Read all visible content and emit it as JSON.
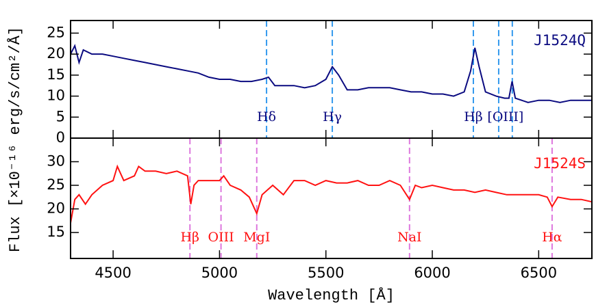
{
  "chart_data": [
    {
      "type": "line",
      "ylabel": "Flux [×10⁻¹⁶ erg/s/cm²/Å]",
      "series": [
        {
          "name": "J1524Q",
          "color": "#0a0a80",
          "x": [
            4300,
            4320,
            4340,
            4360,
            4400,
            4450,
            4500,
            4550,
            4600,
            4650,
            4700,
            4750,
            4800,
            4850,
            4900,
            4950,
            5000,
            5050,
            5100,
            5150,
            5200,
            5230,
            5260,
            5300,
            5350,
            5400,
            5450,
            5500,
            5530,
            5560,
            5600,
            5650,
            5700,
            5750,
            5800,
            5850,
            5900,
            5950,
            6000,
            6050,
            6100,
            6150,
            6180,
            6200,
            6220,
            6250,
            6300,
            6340,
            6360,
            6375,
            6390,
            6420,
            6450,
            6500,
            6550,
            6600,
            6650,
            6700,
            6750
          ],
          "values": [
            20,
            22,
            18,
            21,
            20,
            20,
            19.5,
            19,
            18.5,
            18,
            17.5,
            17,
            16.5,
            16,
            15.5,
            14.5,
            14,
            14,
            13.5,
            13.5,
            14,
            14.5,
            12.5,
            12.5,
            12.5,
            12,
            12.5,
            14,
            17,
            15,
            11.5,
            11.5,
            12,
            12,
            12,
            11.5,
            11,
            11,
            10.5,
            10.5,
            10,
            11,
            16,
            21.5,
            17,
            11,
            10,
            9.5,
            9.5,
            13.5,
            9.5,
            9,
            8.5,
            9,
            9,
            8.5,
            9,
            9,
            9
          ]
        }
      ],
      "ylim": [
        0,
        28
      ],
      "yticks": [
        0,
        5,
        10,
        15,
        20,
        25
      ],
      "vlines": [
        5221,
        5530,
        6193,
        6312,
        6376
      ],
      "vline_color": "#3399ee",
      "annotations": [
        {
          "text": "Hδ",
          "x": 5221
        },
        {
          "text": "Hγ",
          "x": 5530
        },
        {
          "text": "Hβ",
          "x": 6193
        },
        {
          "text": "[OIII]",
          "x": 6344
        }
      ]
    },
    {
      "type": "line",
      "xlabel": "Wavelength [Å]",
      "series": [
        {
          "name": "J1524S",
          "color": "#ff1111",
          "x": [
            4300,
            4320,
            4340,
            4370,
            4400,
            4450,
            4500,
            4520,
            4550,
            4600,
            4620,
            4650,
            4700,
            4750,
            4800,
            4850,
            4865,
            4880,
            4900,
            4950,
            5000,
            5020,
            5050,
            5100,
            5140,
            5175,
            5200,
            5250,
            5300,
            5350,
            5400,
            5450,
            5500,
            5550,
            5600,
            5650,
            5700,
            5750,
            5800,
            5850,
            5893,
            5920,
            5950,
            6000,
            6050,
            6100,
            6150,
            6200,
            6250,
            6300,
            6350,
            6400,
            6450,
            6500,
            6540,
            6563,
            6590,
            6650,
            6700,
            6750
          ],
          "values": [
            17,
            22,
            23,
            21,
            23,
            25,
            26,
            29,
            26,
            27,
            29,
            28,
            28,
            27.5,
            28,
            27,
            21,
            25,
            26,
            26,
            26,
            27,
            25,
            24,
            22.5,
            19,
            23,
            25,
            23,
            26,
            26,
            25,
            26,
            25.5,
            25.5,
            26,
            25,
            25,
            26,
            25,
            22,
            25,
            24.5,
            25,
            24.5,
            24,
            24,
            23.5,
            24,
            23.5,
            23,
            23,
            23,
            23,
            22.5,
            20.5,
            22.5,
            22,
            22,
            21.5
          ]
        }
      ],
      "xlim": [
        4300,
        6750
      ],
      "xticks": [
        4500,
        5000,
        5500,
        6000,
        6500
      ],
      "ylim": [
        9.5,
        35
      ],
      "yticks": [
        15,
        20,
        25,
        30
      ],
      "vlines": [
        4861,
        5007,
        5175,
        5893,
        6563
      ],
      "vline_color": "#dd77dd",
      "annotations": [
        {
          "text": "Hβ",
          "x": 4861
        },
        {
          "text": "OIII",
          "x": 5007
        },
        {
          "text": "MgI",
          "x": 5175
        },
        {
          "text": "NaI",
          "x": 5893
        },
        {
          "text": "Hα",
          "x": 6563
        }
      ]
    }
  ]
}
